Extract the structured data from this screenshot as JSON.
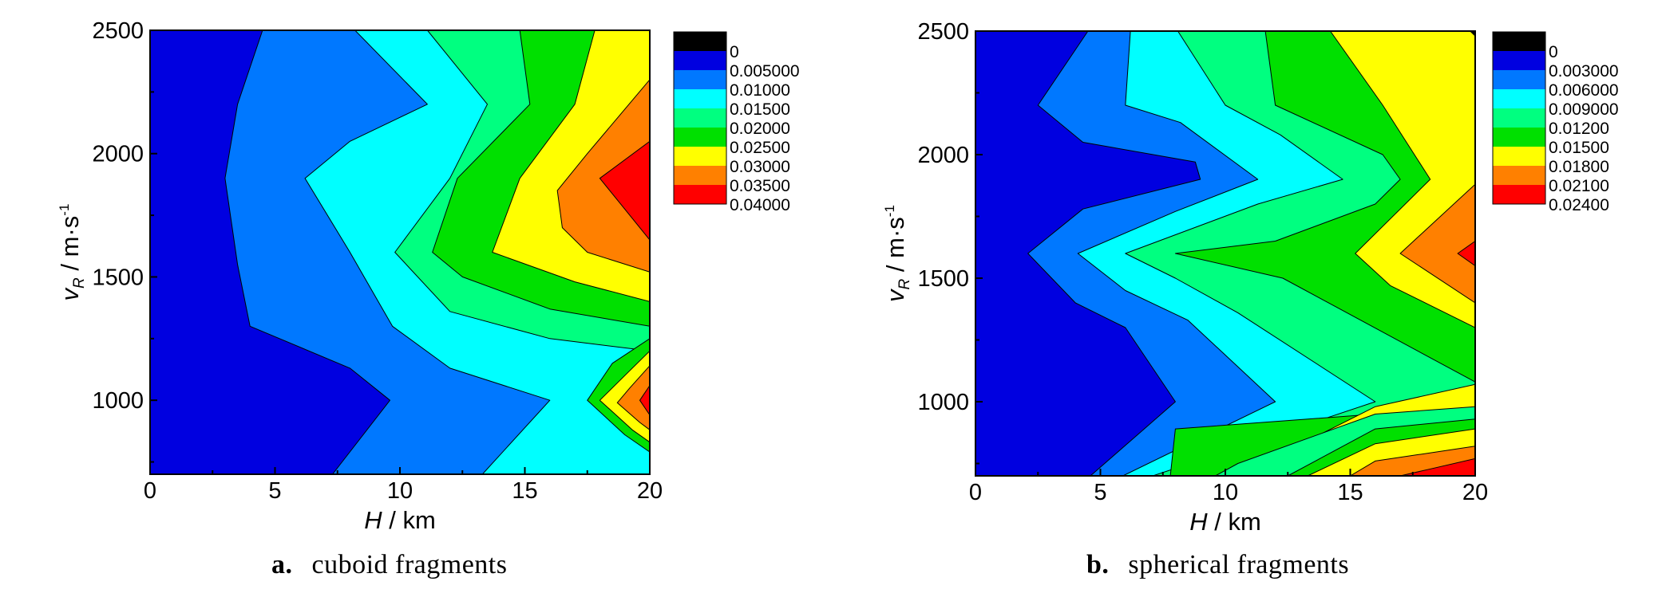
{
  "chart_data": [
    {
      "type": "contour",
      "caption_letter": "a.",
      "caption_text": "cuboid fragments",
      "xlabel": "H",
      "xunit": " / km",
      "ylabel": "v",
      "ylabel_sub": "R",
      "yunit": " / m·s",
      "yunit_sup": "-1",
      "xlim": [
        0,
        20
      ],
      "ylim": [
        700,
        2500
      ],
      "x_ticks": [
        0,
        5,
        10,
        15,
        20
      ],
      "y_ticks": [
        1000,
        1500,
        2000,
        2500
      ],
      "legend_labels": [
        "0",
        "0.005000",
        "0.01000",
        "0.01500",
        "0.02000",
        "0.02500",
        "0.03000",
        "0.03500",
        "0.04000"
      ],
      "bands": [
        {
          "color": "#0000e0",
          "points": [
            [
              0,
              700
            ],
            [
              0,
              2500
            ],
            [
              20,
              2500
            ],
            [
              20,
              700
            ]
          ]
        },
        {
          "color": "#0078ff",
          "points": [
            [
              4.5,
              2500
            ],
            [
              3.5,
              2200
            ],
            [
              3,
              1900
            ],
            [
              3.5,
              1550
            ],
            [
              4,
              1300
            ],
            [
              8,
              1130
            ],
            [
              9.6,
              1000
            ],
            [
              7.3,
              700
            ],
            [
              20,
              700
            ],
            [
              20,
              2500
            ]
          ]
        },
        {
          "color": "#00ffff",
          "points": [
            [
              8.2,
              2500
            ],
            [
              11.1,
              2200
            ],
            [
              8,
              2050
            ],
            [
              6.2,
              1900
            ],
            [
              8,
              1600
            ],
            [
              9.7,
              1300
            ],
            [
              12,
              1130
            ],
            [
              16,
              1000
            ],
            [
              13.3,
              700
            ],
            [
              20,
              700
            ],
            [
              20,
              2500
            ]
          ]
        },
        {
          "color": "#00ff80",
          "points": [
            [
              11.1,
              2500
            ],
            [
              13.5,
              2200
            ],
            [
              12,
              1900
            ],
            [
              9.8,
              1600
            ],
            [
              12,
              1360
            ],
            [
              16,
              1250
            ],
            [
              20,
              1200
            ],
            [
              20,
              2500
            ]
          ]
        },
        {
          "color": "#00e000",
          "points": [
            [
              14.8,
              2500
            ],
            [
              15.2,
              2200
            ],
            [
              12.3,
              1900
            ],
            [
              11.3,
              1600
            ],
            [
              12.5,
              1500
            ],
            [
              16,
              1370
            ],
            [
              20,
              1300
            ],
            [
              20,
              2500
            ]
          ]
        },
        {
          "color": "#ffff00",
          "points": [
            [
              17.8,
              2500
            ],
            [
              17,
              2200
            ],
            [
              14.8,
              1900
            ],
            [
              13.7,
              1600
            ],
            [
              17,
              1480
            ],
            [
              20,
              1400
            ],
            [
              20,
              2500
            ]
          ]
        },
        {
          "color": "#ff8000",
          "points": [
            [
              20,
              2300
            ],
            [
              17.5,
              2000
            ],
            [
              16.3,
              1850
            ],
            [
              16.5,
              1700
            ],
            [
              17.5,
              1600
            ],
            [
              20,
              1520
            ]
          ]
        },
        {
          "color": "#ff0000",
          "points": [
            [
              20,
              2050
            ],
            [
              18,
              1900
            ],
            [
              20,
              1650
            ]
          ]
        },
        {
          "color": "#00e000",
          "points": [
            [
              20,
              1250
            ],
            [
              18.5,
              1150
            ],
            [
              17.5,
              1000
            ],
            [
              19,
              860
            ],
            [
              20,
              790
            ]
          ]
        },
        {
          "color": "#ffff00",
          "points": [
            [
              20,
              1200
            ],
            [
              19,
              1100
            ],
            [
              18,
              1000
            ],
            [
              19.3,
              880
            ],
            [
              20,
              830
            ]
          ]
        },
        {
          "color": "#ff8000",
          "points": [
            [
              20,
              1140
            ],
            [
              19.2,
              1050
            ],
            [
              18.7,
              990
            ],
            [
              19.6,
              910
            ],
            [
              20,
              880
            ]
          ]
        },
        {
          "color": "#ff0000",
          "points": [
            [
              20,
              1060
            ],
            [
              19.6,
              1000
            ],
            [
              20,
              940
            ]
          ]
        }
      ]
    },
    {
      "type": "contour",
      "caption_letter": "b.",
      "caption_text": "spherical fragments",
      "xlabel": "H",
      "xunit": " / km",
      "ylabel": "v",
      "ylabel_sub": "R",
      "yunit": " / m·s",
      "yunit_sup": "-1",
      "xlim": [
        0,
        20
      ],
      "ylim": [
        700,
        2500
      ],
      "x_ticks": [
        0,
        5,
        10,
        15,
        20
      ],
      "y_ticks": [
        1000,
        1500,
        2000,
        2500
      ],
      "legend_labels": [
        "0",
        "0.003000",
        "0.006000",
        "0.009000",
        "0.01200",
        "0.01500",
        "0.01800",
        "0.02100",
        "0.02400"
      ],
      "bands": [
        {
          "color": "#0000e0",
          "points": [
            [
              0,
              700
            ],
            [
              0,
              2500
            ],
            [
              20,
              2500
            ],
            [
              20,
              700
            ]
          ]
        },
        {
          "color": "#0078ff",
          "points": [
            [
              4.5,
              2500
            ],
            [
              2.5,
              2200
            ],
            [
              4.3,
              2050
            ],
            [
              8.8,
              1970
            ],
            [
              9,
              1900
            ],
            [
              4.3,
              1780
            ],
            [
              2.1,
              1600
            ],
            [
              4,
              1400
            ],
            [
              6,
              1300
            ],
            [
              8,
              1000
            ],
            [
              4.6,
              700
            ],
            [
              20,
              700
            ],
            [
              20,
              2500
            ]
          ]
        },
        {
          "color": "#00ffff",
          "points": [
            [
              6.2,
              2500
            ],
            [
              6,
              2200
            ],
            [
              8.2,
              2130
            ],
            [
              11.3,
              1900
            ],
            [
              8,
              1770
            ],
            [
              4.1,
              1600
            ],
            [
              6,
              1450
            ],
            [
              8.5,
              1330
            ],
            [
              12,
              1000
            ],
            [
              5.9,
              700
            ],
            [
              20,
              700
            ],
            [
              20,
              2500
            ]
          ]
        },
        {
          "color": "#00ff80",
          "points": [
            [
              8.1,
              2500
            ],
            [
              10,
              2200
            ],
            [
              12.2,
              2080
            ],
            [
              14.7,
              1900
            ],
            [
              11.3,
              1800
            ],
            [
              6,
              1600
            ],
            [
              8,
              1500
            ],
            [
              10.5,
              1360
            ],
            [
              16,
              1000
            ],
            [
              7.1,
              700
            ],
            [
              20,
              700
            ],
            [
              20,
              2500
            ]
          ]
        },
        {
          "color": "#00e000",
          "points": [
            [
              11.6,
              2500
            ],
            [
              12,
              2200
            ],
            [
              16.3,
              2000
            ],
            [
              17,
              1900
            ],
            [
              16,
              1800
            ],
            [
              12,
              1650
            ],
            [
              8,
              1600
            ],
            [
              12.3,
              1500
            ],
            [
              20,
              1080
            ],
            [
              20,
              990
            ],
            [
              16,
              950
            ],
            [
              8,
              890
            ],
            [
              7.8,
              700
            ],
            [
              20,
              700
            ],
            [
              20,
              2500
            ]
          ]
        },
        {
          "color": "#ffff00",
          "points": [
            [
              14.2,
              2500
            ],
            [
              16.3,
              2200
            ],
            [
              18.2,
              1900
            ],
            [
              15.2,
              1600
            ],
            [
              16.6,
              1470
            ],
            [
              20,
              1300
            ],
            [
              20,
              1070
            ],
            [
              16,
              980
            ],
            [
              10.5,
              700
            ],
            [
              20,
              700
            ],
            [
              20,
              2500
            ]
          ]
        },
        {
          "color": "#00ff80",
          "points": [
            [
              20,
              980
            ],
            [
              16,
              950
            ],
            [
              10.5,
              750
            ],
            [
              9.6,
              700
            ],
            [
              20,
              700
            ]
          ]
        },
        {
          "color": "#00e000",
          "points": [
            [
              20,
              930
            ],
            [
              16,
              890
            ],
            [
              12.5,
              700
            ],
            [
              20,
              700
            ]
          ]
        },
        {
          "color": "#ffff00",
          "points": [
            [
              20,
              890
            ],
            [
              16,
              830
            ],
            [
              13.3,
              700
            ],
            [
              20,
              700
            ]
          ]
        },
        {
          "color": "#ff8000",
          "points": [
            [
              20,
              820
            ],
            [
              16,
              760
            ],
            [
              15,
              700
            ],
            [
              20,
              700
            ]
          ]
        },
        {
          "color": "#ff0000",
          "points": [
            [
              20,
              770
            ],
            [
              18.3,
              730
            ],
            [
              17,
              700
            ],
            [
              20,
              700
            ]
          ]
        },
        {
          "color": "#ff8000",
          "points": [
            [
              20,
              1880
            ],
            [
              17,
              1600
            ],
            [
              20,
              1400
            ]
          ]
        },
        {
          "color": "#ff0000",
          "points": [
            [
              20,
              1650
            ],
            [
              19.3,
              1600
            ],
            [
              20,
              1550
            ]
          ]
        },
        {
          "color": "#000000",
          "points": [
            [
              19.8,
              2500
            ],
            [
              20,
              2480
            ],
            [
              20,
              2500
            ]
          ]
        }
      ]
    }
  ],
  "legend_colors": [
    "#000000",
    "#0000e0",
    "#0078ff",
    "#00ffff",
    "#00ff80",
    "#00e000",
    "#ffff00",
    "#ff8000",
    "#ff0000"
  ]
}
